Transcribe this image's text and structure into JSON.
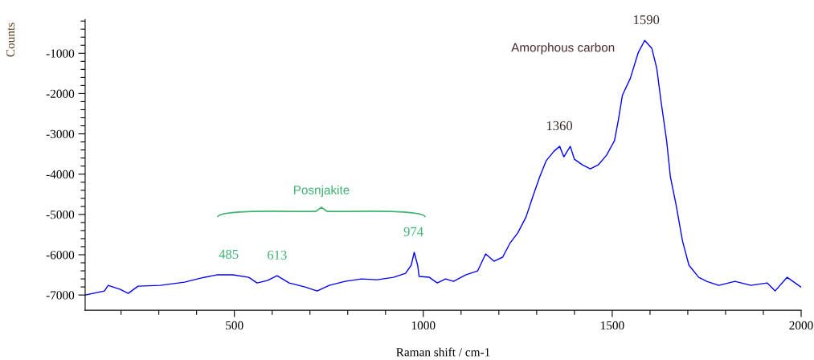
{
  "chart_data": {
    "type": "line",
    "xlabel": "Raman shift / cm-1",
    "ylabel": "Counts",
    "x": [
      105,
      156,
      166,
      198,
      219,
      245,
      304,
      368,
      411,
      453,
      496,
      538,
      560,
      587,
      613,
      645,
      687,
      719,
      751,
      793,
      836,
      878,
      921,
      953,
      968,
      976,
      985,
      989,
      1016,
      1037,
      1059,
      1080,
      1112,
      1144,
      1165,
      1187,
      1210,
      1229,
      1250,
      1272,
      1293,
      1308,
      1325,
      1346,
      1361,
      1372,
      1389,
      1400,
      1421,
      1442,
      1463,
      1485,
      1506,
      1516,
      1527,
      1548,
      1569,
      1586,
      1605,
      1618,
      1629,
      1644,
      1654,
      1669,
      1686,
      1703,
      1729,
      1750,
      1782,
      1825,
      1867,
      1910,
      1931,
      1963,
      1999
    ],
    "series": [
      {
        "color": "#0000ff",
        "values": [
          -7000,
          -6900,
          -6760,
          -6860,
          -6960,
          -6780,
          -6760,
          -6680,
          -6580,
          -6500,
          -6500,
          -6560,
          -6700,
          -6640,
          -6520,
          -6700,
          -6800,
          -6900,
          -6760,
          -6660,
          -6600,
          -6620,
          -6560,
          -6460,
          -6260,
          -5940,
          -6260,
          -6540,
          -6560,
          -6700,
          -6600,
          -6660,
          -6500,
          -6400,
          -5980,
          -6160,
          -6060,
          -5720,
          -5460,
          -5060,
          -4470,
          -4070,
          -3670,
          -3430,
          -3310,
          -3570,
          -3310,
          -3630,
          -3770,
          -3870,
          -3770,
          -3530,
          -3170,
          -2670,
          -2040,
          -1620,
          -980,
          -680,
          -880,
          -1380,
          -2180,
          -3170,
          -4070,
          -4760,
          -5660,
          -6260,
          -6560,
          -6660,
          -6760,
          -6660,
          -6760,
          -6700,
          -6900,
          -6560,
          -6800
        ]
      }
    ],
    "xlim": [
      105,
      2000
    ],
    "ylim": [
      -7380,
      -160
    ],
    "xticks": [
      {
        "value": 200,
        "label": null
      },
      {
        "value": 300,
        "label": null
      },
      {
        "value": 400,
        "label": null
      },
      500,
      {
        "value": 600,
        "label": null
      },
      {
        "value": 700,
        "label": null
      },
      {
        "value": 800,
        "label": null
      },
      {
        "value": 900,
        "label": null
      },
      1000,
      {
        "value": 1100,
        "label": null
      },
      {
        "value": 1200,
        "label": null
      },
      {
        "value": 1300,
        "label": null
      },
      {
        "value": 1400,
        "label": null
      },
      1500,
      {
        "value": 1600,
        "label": null
      },
      {
        "value": 1700,
        "label": null
      },
      {
        "value": 1800,
        "label": null
      },
      {
        "value": 1900,
        "label": null
      },
      2000
    ],
    "yticks": [
      -7000,
      {
        "value": -6800,
        "label": null
      },
      {
        "value": -6600,
        "label": null
      },
      {
        "value": -6400,
        "label": null
      },
      {
        "value": -6200,
        "label": null
      },
      -6000,
      {
        "value": -5800,
        "label": null
      },
      {
        "value": -5600,
        "label": null
      },
      {
        "value": -5400,
        "label": null
      },
      {
        "value": -5200,
        "label": null
      },
      -5000,
      {
        "value": -4800,
        "label": null
      },
      {
        "value": -4600,
        "label": null
      },
      {
        "value": -4400,
        "label": null
      },
      {
        "value": -4200,
        "label": null
      },
      -4000,
      {
        "value": -3800,
        "label": null
      },
      {
        "value": -3600,
        "label": null
      },
      {
        "value": -3400,
        "label": null
      },
      {
        "value": -3200,
        "label": null
      },
      -3000,
      {
        "value": -2800,
        "label": null
      },
      {
        "value": -2600,
        "label": null
      },
      {
        "value": -2400,
        "label": null
      },
      {
        "value": -2200,
        "label": null
      },
      -2000,
      {
        "value": -1800,
        "label": null
      },
      {
        "value": -1600,
        "label": null
      },
      {
        "value": -1400,
        "label": null
      },
      {
        "value": -1200,
        "label": null
      },
      -1000,
      {
        "value": -800,
        "label": null
      },
      {
        "value": -600,
        "label": null
      },
      {
        "value": -400,
        "label": null
      },
      {
        "value": -200,
        "label": null
      }
    ],
    "grid": false,
    "legend": false,
    "annotations": [
      {
        "text": "485",
        "x": 485,
        "y": -6500
      },
      {
        "text": "613",
        "x": 613,
        "y": -6520
      },
      {
        "text": "974",
        "x": 974,
        "y": -5940
      },
      {
        "text": "1360",
        "x": 1360,
        "y": -3310
      },
      {
        "text": "1590",
        "x": 1590,
        "y": -680
      },
      "Amorphous carbon",
      "Posnjakite"
    ]
  }
}
